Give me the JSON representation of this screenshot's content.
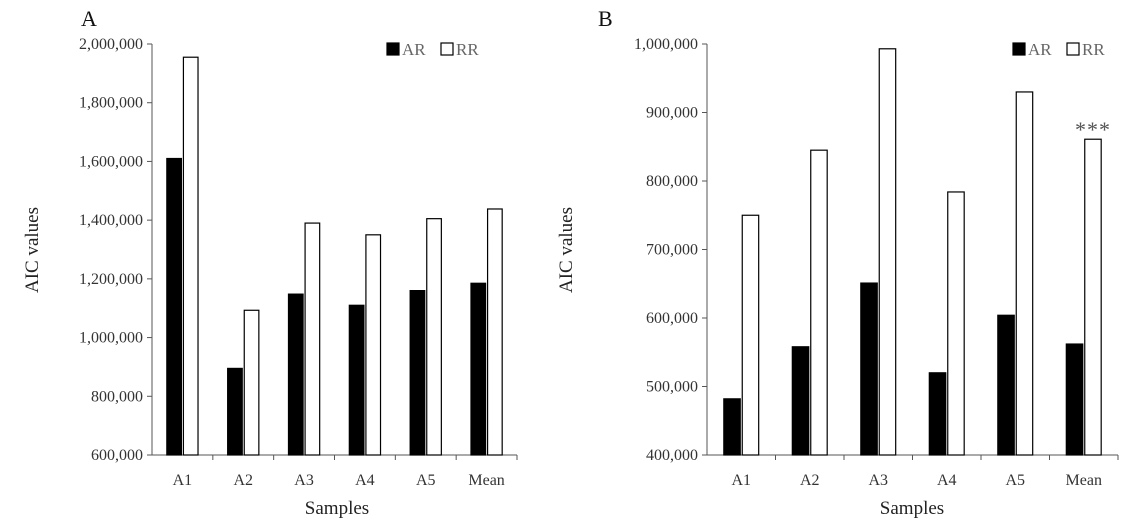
{
  "chart_data": [
    {
      "type": "bar",
      "panel_label": "A",
      "categories": [
        "A1",
        "A2",
        "A3",
        "A4",
        "A5",
        "Mean"
      ],
      "series": [
        {
          "name": "AR",
          "color": "#000000",
          "values": [
            1610000,
            895000,
            1148000,
            1110000,
            1160000,
            1185000
          ]
        },
        {
          "name": "RR",
          "color": "#ffffff",
          "values": [
            1955000,
            1093000,
            1390000,
            1350000,
            1405000,
            1438000
          ]
        }
      ],
      "xlabel": "Samples",
      "ylabel": "AIC  values",
      "ylim": [
        600000,
        2000000
      ],
      "yticks": [
        600000,
        800000,
        1000000,
        1200000,
        1400000,
        1600000,
        1800000,
        2000000
      ],
      "ytick_labels": [
        "600,000",
        "800,000",
        "1,000,000",
        "1,200,000",
        "1,400,000",
        "1,600,000",
        "1,800,000",
        "2,000,000"
      ],
      "legend_position": "top-right",
      "grid": false,
      "annotations": []
    },
    {
      "type": "bar",
      "panel_label": "B",
      "categories": [
        "A1",
        "A2",
        "A3",
        "A4",
        "A5",
        "Mean"
      ],
      "series": [
        {
          "name": "AR",
          "color": "#000000",
          "values": [
            482000,
            558000,
            651000,
            520000,
            604000,
            562000
          ]
        },
        {
          "name": "RR",
          "color": "#ffffff",
          "values": [
            750000,
            845000,
            993000,
            784000,
            930000,
            861000
          ]
        }
      ],
      "xlabel": "Samples",
      "ylabel": "AIC  values",
      "ylim": [
        400000,
        1000000
      ],
      "yticks": [
        400000,
        500000,
        600000,
        700000,
        800000,
        900000,
        1000000
      ],
      "ytick_labels": [
        "400,000",
        "500,000",
        "600,000",
        "700,000",
        "800,000",
        "900,000",
        "1,000,000"
      ],
      "legend_position": "top-right",
      "grid": false,
      "annotations": [
        {
          "text": "***",
          "category": "Mean",
          "series": "RR"
        }
      ]
    }
  ]
}
